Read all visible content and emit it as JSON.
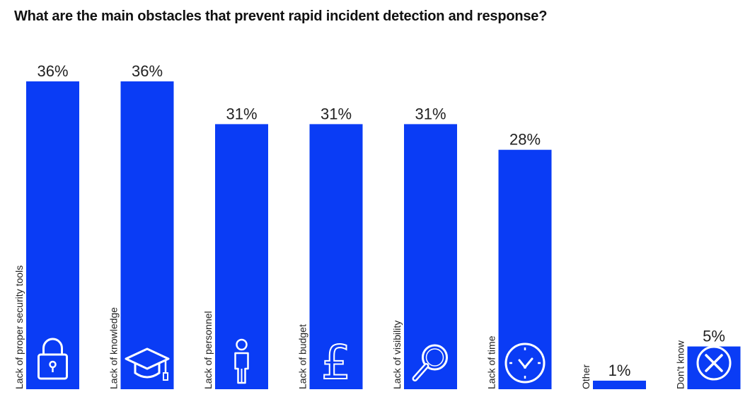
{
  "chart_data": {
    "type": "bar",
    "title": "What are the main obstacles that prevent rapid incident detection and response?",
    "categories": [
      "Lack of proper security tools",
      "Lack of knowledge",
      "Lack of personnel",
      "Lack of budget",
      "Lack of visibility",
      "Lack of time",
      "Other",
      "Don't know"
    ],
    "values": [
      36,
      36,
      31,
      31,
      31,
      28,
      1,
      5
    ],
    "value_labels": [
      "36%",
      "36%",
      "31%",
      "31%",
      "31%",
      "28%",
      "1%",
      "5%"
    ],
    "icons": [
      "padlock-icon",
      "graduation-cap-icon",
      "person-icon",
      "pound-sign-icon",
      "magnifier-icon",
      "clock-icon",
      "",
      "cross-circle-icon"
    ],
    "ylim": [
      0,
      36
    ],
    "grid": false,
    "bar_color": "#0a3cf5",
    "xlabel": "",
    "ylabel": ""
  }
}
